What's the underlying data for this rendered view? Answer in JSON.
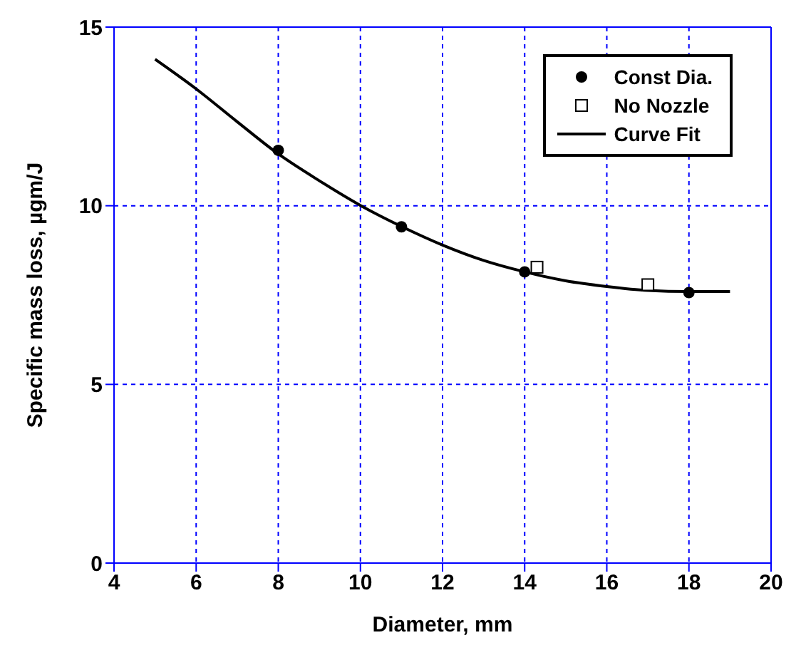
{
  "chart_data": {
    "type": "scatter",
    "xlabel": "Diameter, mm",
    "ylabel": "Specific mass loss, µgm/J",
    "xlim": [
      4,
      20
    ],
    "xticks": [
      4,
      6,
      8,
      10,
      12,
      14,
      16,
      18,
      20
    ],
    "ylim": [
      0,
      15
    ],
    "yticks": [
      0,
      5,
      10,
      15
    ],
    "grid": true,
    "legend": "top right",
    "series": [
      {
        "name": "Const Dia.",
        "marker": "circle",
        "color": "#000000",
        "x": [
          8,
          11,
          14,
          18
        ],
        "values": [
          11.55,
          9.41,
          8.15,
          7.57
        ]
      },
      {
        "name": "No Nozzle",
        "marker": "square",
        "color": "#000000",
        "x": [
          14.3,
          17
        ],
        "values": [
          8.28,
          7.79
        ]
      },
      {
        "name": "Curve Fit",
        "type": "line",
        "marker": "none",
        "line_style": "solid",
        "color": "#000000",
        "x": [
          5,
          6,
          7,
          8,
          9,
          10,
          11,
          12,
          13,
          14,
          15,
          16,
          17,
          18,
          19
        ],
        "values": [
          14.1,
          13.27,
          12.35,
          11.45,
          10.7,
          10.01,
          9.42,
          8.9,
          8.47,
          8.15,
          7.9,
          7.74,
          7.63,
          7.6,
          7.6
        ]
      }
    ]
  }
}
